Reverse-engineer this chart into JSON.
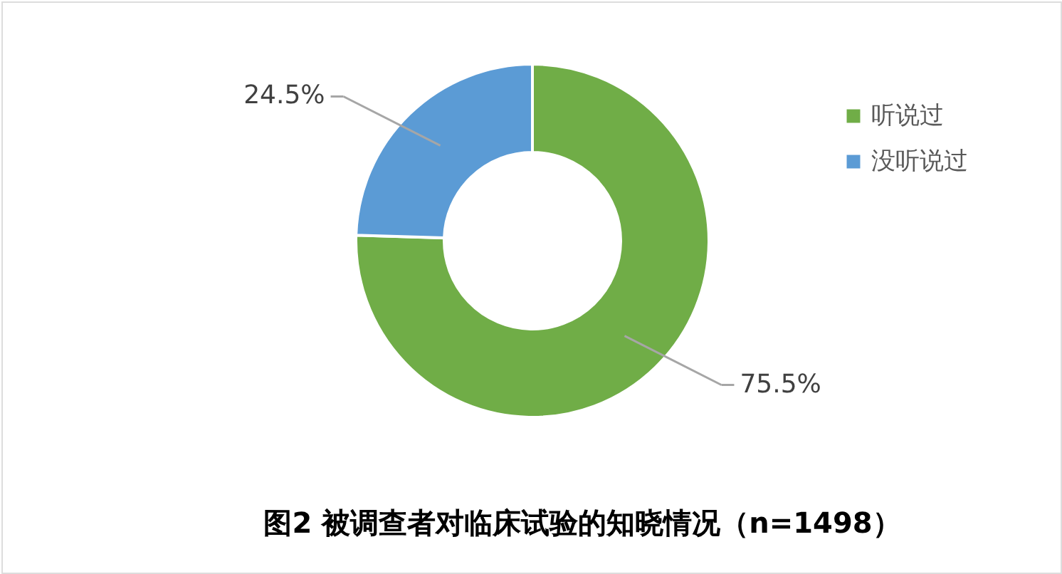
{
  "chart_data": {
    "type": "donut",
    "title": "图2 被调查者对临床试验的知晓情况（n=1498）",
    "categories": [
      "听说过",
      "没听说过"
    ],
    "values": [
      75.5,
      24.5
    ],
    "colors": [
      "#70ad47",
      "#5b9bd5"
    ],
    "value_labels": [
      "75.5%",
      "24.5%"
    ],
    "legend": "right"
  }
}
